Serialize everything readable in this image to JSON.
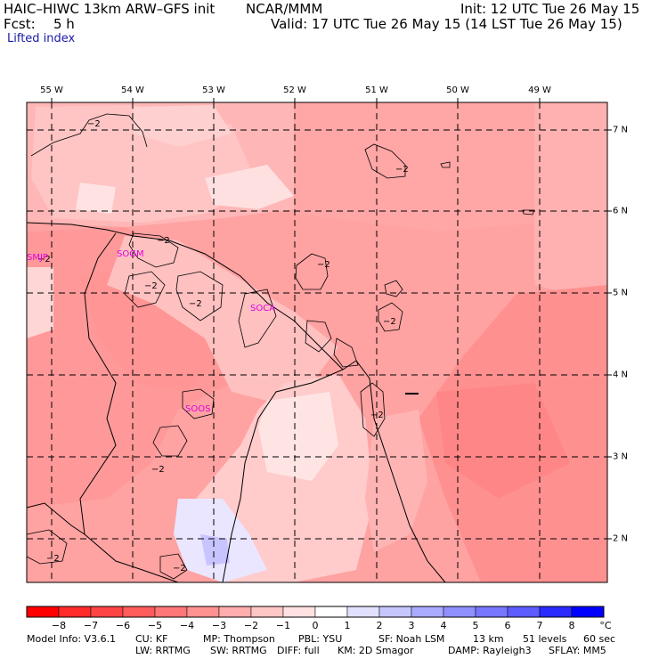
{
  "header": {
    "model": "HAIC–HIWC 13km ARW–GFS init",
    "center": "NCAR/MMM",
    "init": "Init: 12 UTC Tue 26 May 15",
    "fcst_label": "Fcst:",
    "fcst_value": "5 h",
    "valid": "Valid: 17 UTC Tue 26 May 15 (14 LST Tue 26 May 15)",
    "field": "Lifted index"
  },
  "map": {
    "lon_labels": [
      "55 W",
      "54 W",
      "53 W",
      "52 W",
      "51 W",
      "50 W",
      "49 W"
    ],
    "lat_labels": [
      "7 N",
      "6 N",
      "5 N",
      "4 N",
      "3 N",
      "2 N"
    ],
    "contour_label": "−2",
    "stations": [
      "SMJP",
      "SOGM",
      "SOCA",
      "SOOS"
    ]
  },
  "colorbar": {
    "labels": [
      "−8",
      "−7",
      "−6",
      "−5",
      "−4",
      "−3",
      "−2",
      "−1",
      "0",
      "1",
      "2",
      "3",
      "4",
      "5",
      "6",
      "7",
      "8"
    ],
    "unit": "°C",
    "colors": [
      "#ff0000",
      "#ff2a2a",
      "#ff4444",
      "#ff5c5c",
      "#ff7676",
      "#ff9191",
      "#ffadad",
      "#ffc6c6",
      "#ffe1e1",
      "#ffffff",
      "#e1e1ff",
      "#c6c6ff",
      "#aaaaff",
      "#8f8fff",
      "#7676ff",
      "#5c5cff",
      "#2a2aff",
      "#0000ff"
    ]
  },
  "model_info": {
    "line1": [
      "Model Info: V3.6.1",
      "CU: KF",
      "MP: Thompson",
      "PBL: YSU",
      "SF: Noah LSM",
      "13 km",
      "51 levels",
      "60 sec"
    ],
    "line2": [
      "LW: RRTMG",
      "SW: RRTMG",
      "DIFF: full",
      "KM: 2D Smagor",
      "DAMP: Rayleigh3",
      "SFLAY: MM5"
    ]
  }
}
